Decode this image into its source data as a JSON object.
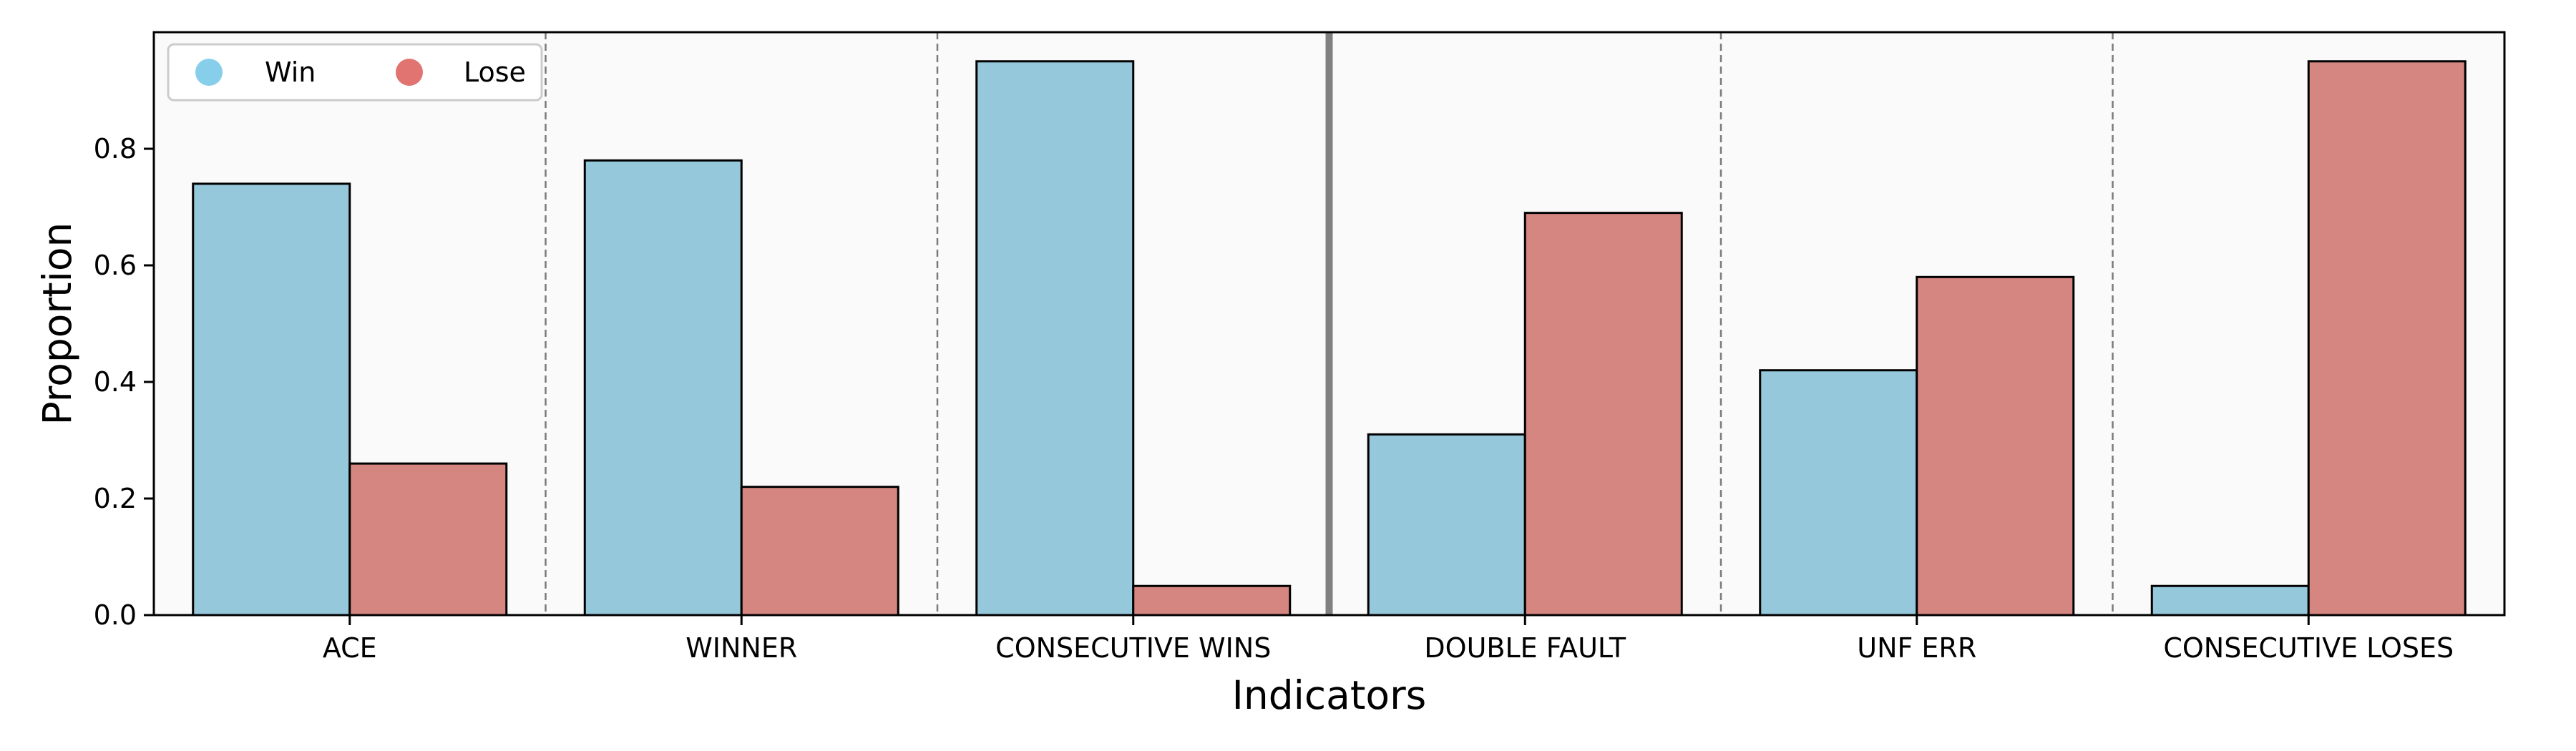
{
  "chart_data": {
    "type": "bar",
    "title": "",
    "xlabel": "Indicators",
    "ylabel": "Proportion",
    "categories": [
      "ACE",
      "WINNER",
      "CONSECUTIVE WINS",
      "DOUBLE FAULT",
      "UNF ERR",
      "CONSECUTIVE LOSES"
    ],
    "series": [
      {
        "name": "Win",
        "color": "#96C8DC",
        "values": [
          0.74,
          0.78,
          0.95,
          0.31,
          0.42,
          0.05
        ]
      },
      {
        "name": "Lose",
        "color": "#D68681",
        "values": [
          0.26,
          0.22,
          0.05,
          0.69,
          0.58,
          0.95
        ]
      }
    ],
    "legend_marker_colors": [
      "#87CEEB",
      "#E17371"
    ],
    "ylim": [
      0,
      1.0
    ],
    "yticks": [
      0.0,
      0.2,
      0.4,
      0.6,
      0.8
    ],
    "ytick_labels": [
      "0.0",
      "0.2",
      "0.4",
      "0.6",
      "0.8"
    ],
    "grid": false,
    "legend": "top-left",
    "plot_background": "#FAFAFA",
    "separators": "dashed between categories; solid thick between CONSECUTIVE WINS and DOUBLE FAULT"
  }
}
